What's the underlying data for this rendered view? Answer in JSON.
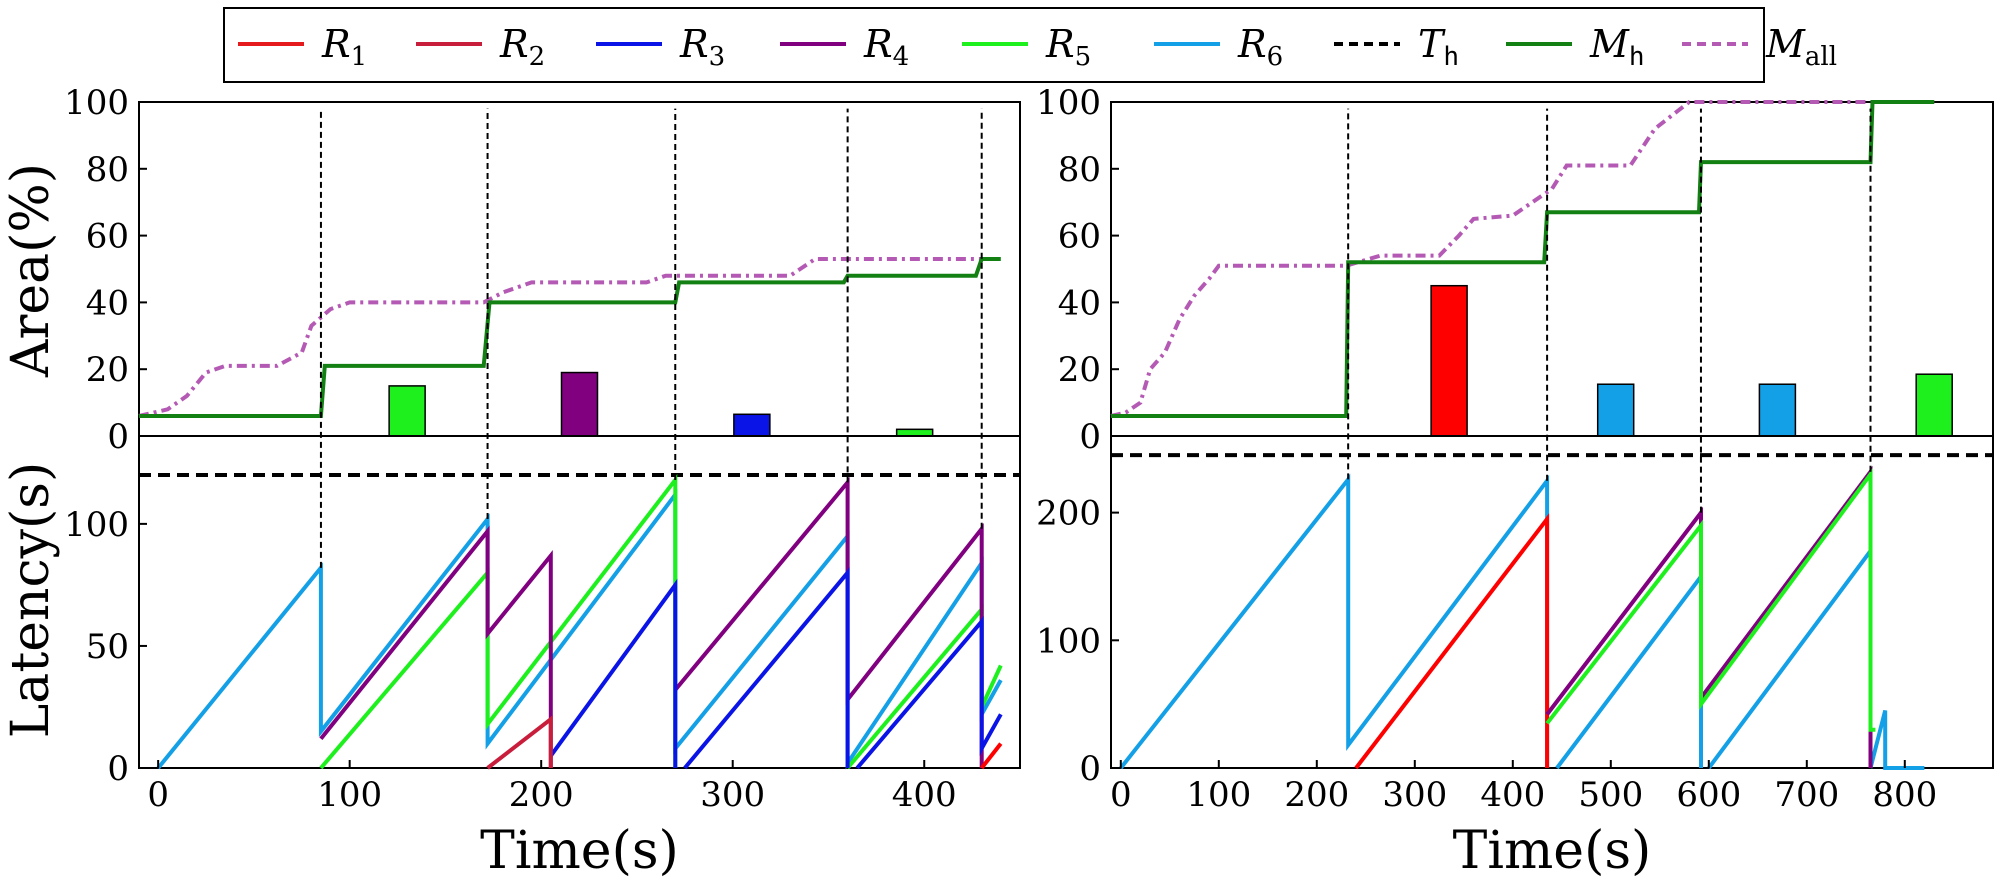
{
  "legend": [
    {
      "key": "R1",
      "label": "R",
      "sub": "1",
      "color": "#e41a1c",
      "dash": false
    },
    {
      "key": "R2",
      "label": "R",
      "sub": "2",
      "color": "#c81e3c",
      "dash": false
    },
    {
      "key": "R3",
      "label": "R",
      "sub": "3",
      "color": "#0a14e6",
      "dash": false
    },
    {
      "key": "R4",
      "label": "R",
      "sub": "4",
      "color": "#800080",
      "dash": false
    },
    {
      "key": "R5",
      "label": "R",
      "sub": "5",
      "color": "#1ef01e",
      "dash": false
    },
    {
      "key": "R6",
      "label": "R",
      "sub": "6",
      "color": "#14a0e6",
      "dash": false
    },
    {
      "key": "Th",
      "label": "T",
      "sub": "h",
      "color": "#000000",
      "dash": true
    },
    {
      "key": "Mh",
      "label": "M",
      "sub": "h",
      "color": "#138013",
      "dash": false
    },
    {
      "key": "Mall",
      "label": "M",
      "sub": "all",
      "color": "#b45ab4",
      "dash": true
    }
  ],
  "colors": {
    "R1": "#ff0000",
    "R2": "#c81e3c",
    "R3": "#0a14e6",
    "R4": "#800080",
    "R5": "#1ef01e",
    "R6": "#14a0e6",
    "Mh": "#138013",
    "Mall": "#b45ab4",
    "Th": "#000000"
  },
  "chart_data": [
    {
      "type": "line",
      "panel": "left-top",
      "ylabel": "Area(%)",
      "xlim": [
        -10,
        450
      ],
      "ylim": [
        0,
        100
      ],
      "yticks": [
        0,
        20,
        40,
        60,
        80,
        100
      ],
      "Mh": [
        [
          -10,
          6
        ],
        [
          85,
          6
        ],
        [
          87,
          21
        ],
        [
          170,
          21
        ],
        [
          173,
          40
        ],
        [
          270,
          40
        ],
        [
          272,
          46
        ],
        [
          358,
          46
        ],
        [
          360,
          48
        ],
        [
          427,
          48
        ],
        [
          430,
          53
        ],
        [
          440,
          53
        ]
      ],
      "Mall": [
        [
          -10,
          6
        ],
        [
          5,
          8
        ],
        [
          15,
          12
        ],
        [
          25,
          19
        ],
        [
          35,
          21
        ],
        [
          62,
          21
        ],
        [
          75,
          25
        ],
        [
          80,
          33
        ],
        [
          90,
          38
        ],
        [
          100,
          40
        ],
        [
          170,
          40
        ],
        [
          180,
          43
        ],
        [
          195,
          46
        ],
        [
          255,
          46
        ],
        [
          265,
          48
        ],
        [
          330,
          48
        ],
        [
          343,
          53
        ],
        [
          440,
          53
        ]
      ],
      "bars": [
        {
          "x": 130,
          "value": 15,
          "series": "R5"
        },
        {
          "x": 220,
          "value": 19,
          "series": "R4"
        },
        {
          "x": 310,
          "value": 6.5,
          "series": "R3"
        },
        {
          "x": 395,
          "value": 2,
          "series": "R5"
        }
      ]
    },
    {
      "type": "line",
      "panel": "left-bottom",
      "xlabel": "Time(s)",
      "ylabel": "Latency(s)",
      "xlim": [
        -10,
        450
      ],
      "ylim": [
        0,
        136
      ],
      "xticks": [
        0,
        100,
        200,
        300,
        400
      ],
      "yticks": [
        0,
        50,
        100
      ],
      "threshold": 120,
      "vlines": [
        85,
        172,
        270,
        360,
        430
      ],
      "series": [
        {
          "name": "R6",
          "segments": [
            [
              [
                0,
                0
              ],
              [
                85,
                82
              ],
              [
                85,
                15
              ],
              [
                172,
                102
              ],
              [
                172,
                10
              ],
              [
                270,
                112
              ],
              [
                270,
                8
              ],
              [
                360,
                95
              ],
              [
                360,
                2
              ],
              [
                430,
                84
              ],
              [
                430,
                22
              ],
              [
                440,
                36
              ]
            ]
          ]
        },
        {
          "name": "R5",
          "segments": [
            [
              [
                85,
                0
              ],
              [
                172,
                80
              ],
              [
                172,
                18
              ],
              [
                270,
                118
              ],
              [
                270,
                0
              ]
            ],
            [
              [
                360,
                0
              ],
              [
                430,
                65
              ],
              [
                430,
                25
              ],
              [
                440,
                42
              ]
            ]
          ]
        },
        {
          "name": "R4",
          "segments": [
            [
              [
                85,
                12
              ],
              [
                172,
                97
              ],
              [
                172,
                55
              ],
              [
                205,
                87
              ],
              [
                205,
                0
              ]
            ],
            [
              [
                270,
                32
              ],
              [
                360,
                117
              ],
              [
                360,
                28
              ],
              [
                430,
                98
              ],
              [
                430,
                0
              ]
            ]
          ]
        },
        {
          "name": "R3",
          "segments": [
            [
              [
                205,
                5
              ],
              [
                270,
                75
              ],
              [
                270,
                0
              ]
            ],
            [
              [
                275,
                0
              ],
              [
                360,
                80
              ],
              [
                360,
                0
              ]
            ],
            [
              [
                365,
                0
              ],
              [
                430,
                60
              ],
              [
                430,
                8
              ],
              [
                440,
                22
              ]
            ]
          ]
        },
        {
          "name": "R2",
          "segments": [
            [
              [
                172,
                0
              ],
              [
                205,
                20
              ],
              [
                205,
                0
              ]
            ]
          ]
        },
        {
          "name": "R1",
          "segments": [
            [
              [
                430,
                0
              ],
              [
                440,
                10
              ]
            ]
          ]
        }
      ]
    },
    {
      "type": "line",
      "panel": "right-top",
      "ylabel": "Area(%)",
      "xlim": [
        -10,
        890
      ],
      "ylim": [
        0,
        100
      ],
      "yticks": [
        0,
        20,
        40,
        60,
        80,
        100
      ],
      "Mh": [
        [
          -10,
          6
        ],
        [
          230,
          6
        ],
        [
          232,
          52
        ],
        [
          432,
          52
        ],
        [
          435,
          67
        ],
        [
          590,
          67
        ],
        [
          592,
          82
        ],
        [
          765,
          82
        ],
        [
          767,
          100
        ],
        [
          830,
          100
        ]
      ],
      "Mall": [
        [
          -10,
          6
        ],
        [
          5,
          7
        ],
        [
          20,
          10
        ],
        [
          30,
          20
        ],
        [
          45,
          25
        ],
        [
          60,
          35
        ],
        [
          75,
          42
        ],
        [
          90,
          47
        ],
        [
          100,
          51
        ],
        [
          230,
          51
        ],
        [
          265,
          54
        ],
        [
          325,
          54
        ],
        [
          345,
          60
        ],
        [
          360,
          65
        ],
        [
          400,
          66
        ],
        [
          420,
          70
        ],
        [
          440,
          74
        ],
        [
          455,
          81
        ],
        [
          520,
          81
        ],
        [
          545,
          92
        ],
        [
          580,
          100
        ],
        [
          830,
          100
        ]
      ],
      "bars": [
        {
          "x": 335,
          "value": 45,
          "series": "R1"
        },
        {
          "x": 505,
          "value": 15.5,
          "series": "R6"
        },
        {
          "x": 670,
          "value": 15.5,
          "series": "R6"
        },
        {
          "x": 830,
          "value": 18.5,
          "series": "R5"
        }
      ]
    },
    {
      "type": "line",
      "panel": "right-bottom",
      "xlabel": "Time(s)",
      "ylabel": "Latency(s)",
      "xlim": [
        -10,
        890
      ],
      "ylim": [
        0,
        260
      ],
      "xticks": [
        0,
        100,
        200,
        300,
        400,
        500,
        600,
        700,
        800
      ],
      "yticks": [
        0,
        100,
        200
      ],
      "threshold": 245,
      "vlines": [
        232,
        435,
        592,
        765
      ],
      "series": [
        {
          "name": "R6",
          "segments": [
            [
              [
                0,
                0
              ],
              [
                232,
                226
              ],
              [
                232,
                18
              ],
              [
                435,
                225
              ],
              [
                435,
                0
              ]
            ],
            [
              [
                445,
                0
              ],
              [
                592,
                150
              ],
              [
                592,
                0
              ]
            ],
            [
              [
                600,
                0
              ],
              [
                765,
                170
              ],
              [
                765,
                0
              ]
            ],
            [
              [
                765,
                0
              ],
              [
                780,
                45
              ],
              [
                780,
                0
              ],
              [
                820,
                0
              ]
            ]
          ]
        },
        {
          "name": "R1",
          "segments": [
            [
              [
                240,
                0
              ],
              [
                435,
                195
              ],
              [
                435,
                0
              ]
            ]
          ]
        },
        {
          "name": "R4",
          "segments": [
            [
              [
                435,
                42
              ],
              [
                592,
                200
              ],
              [
                592,
                55
              ],
              [
                765,
                232
              ],
              [
                765,
                0
              ]
            ]
          ]
        },
        {
          "name": "R5",
          "segments": [
            [
              [
                435,
                35
              ],
              [
                592,
                190
              ],
              [
                592,
                50
              ],
              [
                765,
                230
              ],
              [
                765,
                30
              ],
              [
                770,
                30
              ]
            ]
          ]
        }
      ]
    }
  ]
}
